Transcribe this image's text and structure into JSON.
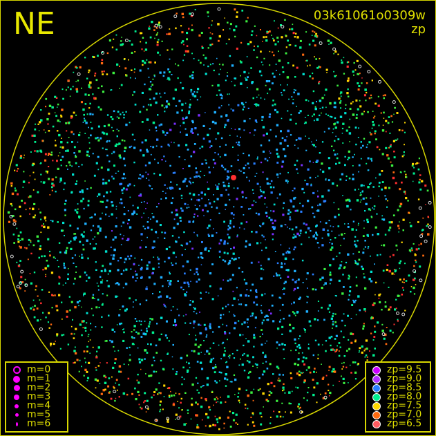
{
  "direction_label": "NE",
  "image_id": "03k61061o0309w",
  "color_mode": "zp",
  "colors": {
    "frame": "#d8d800",
    "horizon": "#d8d800",
    "text": "#e0e000",
    "magnitude_symbol": "#ff00ff"
  },
  "magnitude_legend": [
    {
      "label": "m=0",
      "style": "ring"
    },
    {
      "label": "m=1",
      "style": "dot"
    },
    {
      "label": "m=2",
      "style": "dot"
    },
    {
      "label": "m=3",
      "style": "dot"
    },
    {
      "label": "m=4",
      "style": "dot"
    },
    {
      "label": "m=5",
      "style": "dot"
    },
    {
      "label": "m=6",
      "style": "dot"
    }
  ],
  "zp_legend": [
    {
      "label": "zp=9.5",
      "color": "#cc00ff"
    },
    {
      "label": "zp=9.0",
      "color": "#b030ff"
    },
    {
      "label": "zp=8.5",
      "color": "#2a7fff"
    },
    {
      "label": "zp=8.0",
      "color": "#00f090"
    },
    {
      "label": "zp=7.5",
      "color": "#ffd800"
    },
    {
      "label": "zp=7.0",
      "color": "#ff6a10"
    },
    {
      "label": "zp=6.5",
      "color": "#ff5a60"
    }
  ]
}
